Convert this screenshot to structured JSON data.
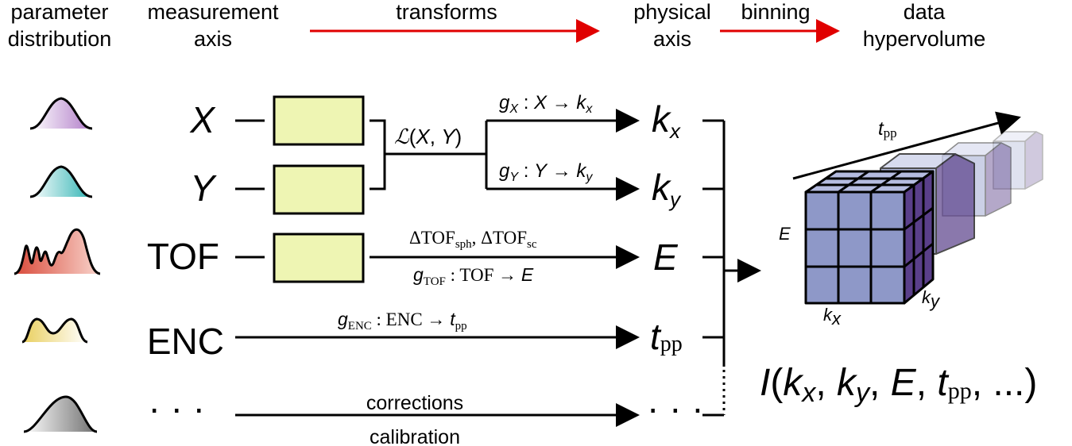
{
  "headers": {
    "parameter_distribution": [
      "parameter",
      "distribution"
    ],
    "measurement_axis": [
      "measurement",
      "axis"
    ],
    "transforms": "transforms",
    "physical_axis": [
      "physical",
      "axis"
    ],
    "binning": "binning",
    "data_hypervolume": [
      "data",
      "hypervolume"
    ]
  },
  "rows": [
    {
      "measure": "X",
      "physical": "k",
      "physical_sub": "x",
      "color": "#c79ad6"
    },
    {
      "measure": "Y",
      "physical": "k",
      "physical_sub": "y",
      "color": "#5fc7c7"
    },
    {
      "measure": "TOF",
      "physical": "E",
      "physical_sub": "",
      "color": "#e3604f"
    },
    {
      "measure": "ENC",
      "physical": "t",
      "physical_sub": "pp",
      "color": "#ecd57a"
    },
    {
      "measure": "· · ·",
      "physical": "· · ·",
      "physical_sub": "",
      "color": "#8a8a8a"
    }
  ],
  "annotations": {
    "joint": "ℒ(X, Y)",
    "gx": "gX : X → kx",
    "gy": "gY : Y → ky",
    "dtof": "ΔTOFsph, ΔTOFsc",
    "gtof": "gTOF : TOF → E",
    "genc": "gENC : ENC → tpp",
    "corrections": "corrections",
    "calibration": "calibration"
  },
  "cube": {
    "tpp_label": "tpp",
    "e_label": "E",
    "kx_label": "kx",
    "ky_label": "ky"
  },
  "formula": "I(kx, ky, E, tpp, ...)",
  "colors": {
    "arrow_red": "#e00000",
    "box_fill": "#eef5b3",
    "cube_front": "#8e98c8",
    "cube_side": "#5a3f8a"
  }
}
